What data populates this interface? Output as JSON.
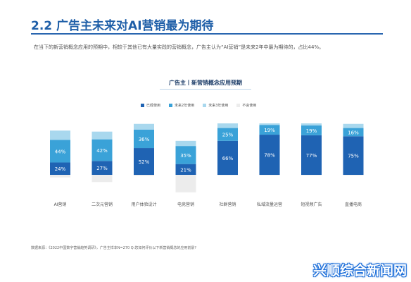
{
  "page": {
    "heading": "2.2 广告主未来对AI营销最为期待",
    "intro": "在当下的新营销概念应用的预期中，相较于其他已有大量实践的营销概念，广告主认为“AI营销”是未来2年中最为期待的，占比44%。",
    "source": "数据来源：《2022中国数字营销趋势调研》，广告主样本N=270 Q:您如何评价以下新营销概念的应用前景?",
    "watermark": "兴顺综合新闻网"
  },
  "colors": {
    "used": "#1f63b3",
    "within_2y": "#3aa2d8",
    "within_3y": "#a9d8ee",
    "not_used": "#ececec"
  },
  "chart_data": {
    "type": "bar",
    "stacked": true,
    "title": "广告主丨新营销概念应用预期",
    "legend_position": "top",
    "categories": [
      "AI营销",
      "二次元营销",
      "用户体验设计",
      "电竞营销",
      "社群营销",
      "私域流量运营",
      "短视频广告",
      "直播电商"
    ],
    "series": [
      {
        "name": "已经使用",
        "color_key": "used",
        "values": [
          24,
          27,
          52,
          21,
          66,
          78,
          77,
          75
        ],
        "labels": [
          "24%",
          "27%",
          "52%",
          "21%",
          "66%",
          "78%",
          "77%",
          "75%"
        ]
      },
      {
        "name": "未来2年使用",
        "color_key": "within_2y",
        "values": [
          44,
          42,
          36,
          35,
          25,
          19,
          19,
          16
        ],
        "labels": [
          "44%",
          "42%",
          "36%",
          "35%",
          "25%",
          "19%",
          "19%",
          "16%"
        ]
      },
      {
        "name": "未来3年使用",
        "color_key": "within_3y",
        "values": [
          18,
          15,
          11,
          10,
          9,
          3,
          4,
          8
        ],
        "labels": [
          "",
          "",
          "",
          "",
          "",
          "",
          "",
          ""
        ]
      },
      {
        "name": "不会使用",
        "color_key": "not_used",
        "values": [
          -5,
          -14,
          -2,
          -34,
          -1,
          -1,
          -1,
          -1
        ],
        "labels": [
          "",
          "",
          "",
          "",
          "",
          "",
          "",
          ""
        ]
      }
    ],
    "ylim": [
      -40,
      100
    ],
    "grid": false
  }
}
